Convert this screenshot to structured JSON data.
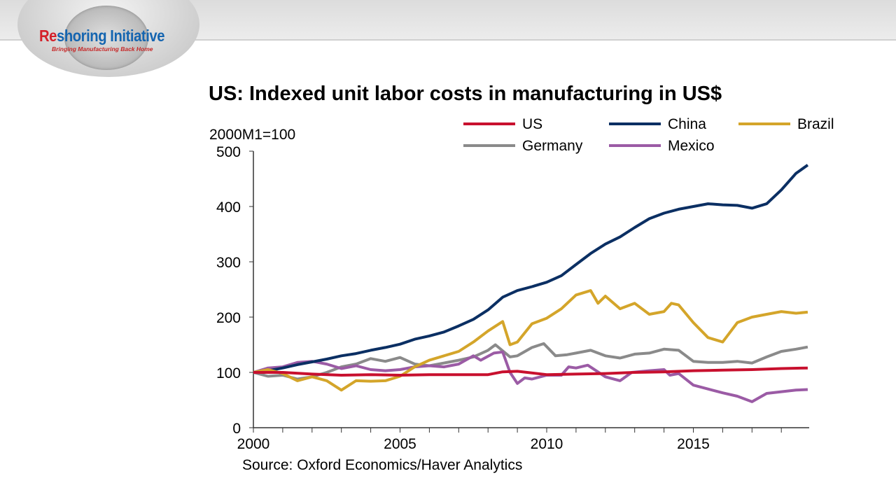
{
  "logo": {
    "name_red": "Re",
    "name_blue": "shoring Initiative",
    "tagline": "Bringing Manufacturing Back Home"
  },
  "chart_data": {
    "type": "line",
    "title": "US: Indexed unit labor costs in manufacturing in US$",
    "ylabel": "2000M1=100",
    "source": "Source: Oxford Economics/Haver Analytics",
    "xlim": [
      2000,
      2018.9
    ],
    "ylim": [
      0,
      500
    ],
    "xticks": [
      "2000",
      "2005",
      "2010",
      "2015"
    ],
    "yticks": [
      "0",
      "100",
      "200",
      "300",
      "400",
      "500"
    ],
    "grid": false,
    "legend": "top",
    "series": [
      {
        "name": "US",
        "color": "#c8102e",
        "x": [
          2000,
          2001,
          2002,
          2003,
          2004,
          2005,
          2006,
          2007,
          2008,
          2008.5,
          2009,
          2010,
          2011,
          2012,
          2013,
          2014,
          2015,
          2016,
          2017,
          2018,
          2018.9
        ],
        "y": [
          100,
          100,
          97,
          95,
          96,
          95,
          96,
          96,
          96,
          101,
          102,
          96,
          97,
          98,
          100,
          101,
          103,
          104,
          105,
          107,
          108
        ]
      },
      {
        "name": "China",
        "color": "#0b2f63",
        "x": [
          2000,
          2000.5,
          2001,
          2001.5,
          2002,
          2002.5,
          2003,
          2003.5,
          2004,
          2004.5,
          2005,
          2005.5,
          2006,
          2006.5,
          2007,
          2007.5,
          2008,
          2008.5,
          2009,
          2009.5,
          2010,
          2010.5,
          2011,
          2011.5,
          2012,
          2012.5,
          2013,
          2013.5,
          2014,
          2014.5,
          2015,
          2015.5,
          2016,
          2016.5,
          2017,
          2017.5,
          2018,
          2018.5,
          2018.9
        ],
        "y": [
          100,
          103,
          108,
          114,
          119,
          124,
          130,
          134,
          140,
          145,
          151,
          160,
          166,
          173,
          184,
          196,
          213,
          236,
          248,
          255,
          263,
          275,
          295,
          315,
          332,
          345,
          362,
          378,
          388,
          395,
          400,
          405,
          403,
          402,
          397,
          405,
          430,
          460,
          475
        ]
      },
      {
        "name": "Brazil",
        "color": "#d4a52a",
        "x": [
          2000,
          2000.5,
          2001,
          2001.5,
          2002,
          2002.5,
          2003,
          2003.5,
          2004,
          2004.5,
          2005,
          2005.5,
          2006,
          2006.5,
          2007,
          2007.5,
          2008,
          2008.5,
          2008.75,
          2009,
          2009.5,
          2010,
          2010.5,
          2011,
          2011.5,
          2011.75,
          2012,
          2012.5,
          2013,
          2013.5,
          2014,
          2014.25,
          2014.5,
          2015,
          2015.5,
          2016,
          2016.5,
          2017,
          2017.5,
          2018,
          2018.5,
          2018.9
        ],
        "y": [
          100,
          105,
          98,
          85,
          92,
          85,
          68,
          85,
          84,
          85,
          93,
          110,
          122,
          130,
          138,
          155,
          175,
          192,
          150,
          155,
          188,
          198,
          215,
          240,
          248,
          225,
          238,
          215,
          225,
          205,
          210,
          225,
          222,
          190,
          163,
          155,
          190,
          200,
          205,
          210,
          207,
          209
        ]
      },
      {
        "name": "Germany",
        "color": "#8a8a8a",
        "x": [
          2000,
          2000.5,
          2001,
          2001.5,
          2002,
          2002.5,
          2003,
          2003.5,
          2004,
          2004.5,
          2005,
          2005.5,
          2006,
          2006.5,
          2007,
          2007.5,
          2008,
          2008.25,
          2008.75,
          2009,
          2009.5,
          2009.9,
          2010.3,
          2010.7,
          2011,
          2011.5,
          2012,
          2012.5,
          2013,
          2013.5,
          2014,
          2014.5,
          2015,
          2015.5,
          2016,
          2016.5,
          2017,
          2017.5,
          2018,
          2018.5,
          2018.9
        ],
        "y": [
          100,
          93,
          95,
          88,
          92,
          100,
          110,
          115,
          125,
          120,
          127,
          115,
          112,
          117,
          122,
          128,
          140,
          150,
          128,
          130,
          145,
          152,
          130,
          132,
          135,
          140,
          130,
          126,
          133,
          135,
          142,
          140,
          120,
          118,
          118,
          120,
          117,
          128,
          138,
          142,
          146
        ]
      },
      {
        "name": "Mexico",
        "color": "#9b5ba5",
        "x": [
          2000,
          2000.5,
          2001,
          2001.5,
          2002,
          2002.5,
          2003,
          2003.5,
          2004,
          2004.5,
          2005,
          2005.5,
          2006,
          2006.5,
          2007,
          2007.5,
          2007.75,
          2008.2,
          2008.5,
          2008.75,
          2009,
          2009.25,
          2009.5,
          2010,
          2010.5,
          2010.75,
          2011,
          2011.4,
          2012,
          2012.5,
          2012.9,
          2013.5,
          2014,
          2014.2,
          2014.5,
          2015,
          2015.5,
          2016,
          2016.5,
          2017,
          2017.5,
          2018,
          2018.5,
          2018.9
        ],
        "y": [
          100,
          108,
          110,
          118,
          120,
          115,
          107,
          112,
          105,
          103,
          105,
          110,
          112,
          110,
          115,
          130,
          122,
          135,
          137,
          100,
          80,
          90,
          88,
          95,
          95,
          110,
          108,
          113,
          92,
          85,
          100,
          103,
          105,
          95,
          98,
          77,
          70,
          63,
          57,
          47,
          62,
          65,
          68,
          69
        ]
      }
    ]
  }
}
